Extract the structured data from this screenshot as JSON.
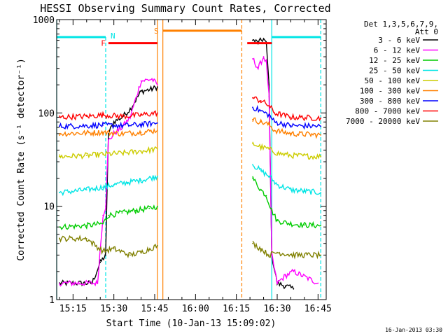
{
  "chart_data": {
    "type": "line",
    "title": "HESSI Observing Summary Count Rates, Corrected",
    "xlabel": "Start Time (10-Jan-13 15:09:02)",
    "ylabel": "Corrected Count Rate (s⁻¹ detector⁻¹)",
    "y_scale": "log",
    "ylim": [
      1,
      1000
    ],
    "xlim": [
      "15:09",
      "16:48"
    ],
    "x_ticks": [
      "15:15",
      "15:30",
      "15:45",
      "16:00",
      "16:15",
      "16:30",
      "16:45"
    ],
    "y_ticks": [
      "1",
      "10",
      "100",
      "1000"
    ],
    "legend": {
      "placement": "right",
      "header": [
        "Det 1,3,5,6,7,9,",
        "Att 0"
      ],
      "entries": [
        {
          "label": "3 - 6 keV",
          "color": "#000000"
        },
        {
          "label": "6 - 12 keV",
          "color": "#ff00ff"
        },
        {
          "label": "12 - 25 keV",
          "color": "#00cc00"
        },
        {
          "label": "25 - 50 keV",
          "color": "#00e5e5"
        },
        {
          "label": "50 - 100 keV",
          "color": "#cccc00"
        },
        {
          "label": "100 - 300 keV",
          "color": "#ff8000"
        },
        {
          "label": "300 - 800 keV",
          "color": "#0000ff"
        },
        {
          "label": "800 - 7000 keV",
          "color": "#ff0000"
        },
        {
          "label": "7000 - 20000 keV",
          "color": "#808000"
        }
      ]
    },
    "series": [
      {
        "name": "3 - 6 keV",
        "color": "#000000",
        "segments": [
          {
            "x": [
              "15:10",
              "15:22",
              "15:25",
              "15:27",
              "15:28",
              "15:30",
              "15:33",
              "15:36",
              "15:40",
              "15:44",
              "15:46"
            ],
            "y": [
              1.5,
              1.5,
              2.5,
              3,
              60,
              80,
              90,
              110,
              170,
              180,
              190
            ]
          },
          {
            "x": [
              "16:21",
              "16:23",
              "16:25",
              "16:26",
              "16:27",
              "16:28",
              "16:30",
              "16:33",
              "16:36"
            ],
            "y": [
              600,
              570,
              620,
              550,
              200,
              3,
              1.5,
              1.4,
              1.3
            ]
          }
        ]
      },
      {
        "name": "6 - 12 keV",
        "color": "#ff00ff",
        "segments": [
          {
            "x": [
              "15:10",
              "15:24",
              "15:26",
              "15:27",
              "15:28",
              "15:30",
              "15:33",
              "15:36",
              "15:40",
              "15:44",
              "15:46"
            ],
            "y": [
              1.5,
              1.5,
              8,
              10,
              50,
              60,
              70,
              90,
              220,
              230,
              200
            ]
          },
          {
            "x": [
              "16:21",
              "16:23",
              "16:25",
              "16:26",
              "16:27",
              "16:28",
              "16:30",
              "16:33",
              "16:36",
              "16:45"
            ],
            "y": [
              380,
              300,
              400,
              350,
              150,
              3,
              1.5,
              1.8,
              2,
              1.5
            ]
          }
        ]
      },
      {
        "name": "12 - 25 keV",
        "color": "#00cc00",
        "segments": [
          {
            "x": [
              "15:10",
              "15:20",
              "15:26",
              "15:28",
              "15:33",
              "15:38",
              "15:43",
              "15:46"
            ],
            "y": [
              6,
              6.2,
              6.5,
              8,
              8.5,
              9,
              9.5,
              10
            ]
          },
          {
            "x": [
              "16:21",
              "16:24",
              "16:26",
              "16:28",
              "16:30",
              "16:35",
              "16:40",
              "16:46"
            ],
            "y": [
              20,
              15,
              13,
              9,
              7,
              6.5,
              6.3,
              6.2
            ]
          }
        ]
      },
      {
        "name": "25 - 50 keV",
        "color": "#00e5e5",
        "segments": [
          {
            "x": [
              "15:10",
              "15:20",
              "15:26",
              "15:30",
              "15:35",
              "15:40",
              "15:46"
            ],
            "y": [
              14,
              15,
              16,
              17,
              18,
              19,
              21
            ]
          },
          {
            "x": [
              "16:21",
              "16:24",
              "16:27",
              "16:30",
              "16:35",
              "16:40",
              "16:46"
            ],
            "y": [
              28,
              24,
              21,
              17,
              15,
              14.5,
              14
            ]
          }
        ]
      },
      {
        "name": "50 - 100 keV",
        "color": "#cccc00",
        "segments": [
          {
            "x": [
              "15:10",
              "15:20",
              "15:26",
              "15:33",
              "15:40",
              "15:46"
            ],
            "y": [
              34,
              35,
              36,
              37,
              39,
              41
            ]
          },
          {
            "x": [
              "16:21",
              "16:24",
              "16:27",
              "16:30",
              "16:35",
              "16:46"
            ],
            "y": [
              47,
              43,
              41,
              37,
              35,
              34
            ]
          }
        ]
      },
      {
        "name": "100 - 300 keV",
        "color": "#ff8000",
        "segments": [
          {
            "x": [
              "15:10",
              "15:20",
              "15:26",
              "15:33",
              "15:40",
              "15:46"
            ],
            "y": [
              60,
              61,
              62,
              60,
              62,
              65
            ]
          },
          {
            "x": [
              "16:21",
              "16:24",
              "16:27",
              "16:29",
              "16:35",
              "16:46"
            ],
            "y": [
              85,
              80,
              75,
              65,
              60,
              58
            ]
          }
        ]
      },
      {
        "name": "300 - 800 keV",
        "color": "#0000ff",
        "segments": [
          {
            "x": [
              "15:10",
              "15:20",
              "15:26",
              "15:33",
              "15:40",
              "15:46"
            ],
            "y": [
              72,
              73,
              74,
              73,
              75,
              78
            ]
          },
          {
            "x": [
              "16:21",
              "16:24",
              "16:27",
              "16:29",
              "16:35",
              "16:46"
            ],
            "y": [
              115,
              105,
              95,
              80,
              73,
              72
            ]
          }
        ]
      },
      {
        "name": "800 - 7000 keV",
        "color": "#ff0000",
        "segments": [
          {
            "x": [
              "15:10",
              "15:20",
              "15:26",
              "15:33",
              "15:40",
              "15:46"
            ],
            "y": [
              90,
              92,
              95,
              92,
              95,
              100
            ]
          },
          {
            "x": [
              "16:21",
              "16:24",
              "16:27",
              "16:29",
              "16:35",
              "16:46"
            ],
            "y": [
              145,
              135,
              120,
              100,
              90,
              88
            ]
          }
        ]
      },
      {
        "name": "7000 - 20000 keV",
        "color": "#808000",
        "segments": [
          {
            "x": [
              "15:10",
              "15:20",
              "15:26",
              "15:30",
              "15:36",
              "15:40",
              "15:46"
            ],
            "y": [
              4.5,
              4.5,
              3.3,
              3.5,
              3.0,
              3.2,
              3.8
            ]
          },
          {
            "x": [
              "16:21",
              "16:24",
              "16:27",
              "16:30",
              "16:36",
              "16:46"
            ],
            "y": [
              4.0,
              3.5,
              3.0,
              3.2,
              3.0,
              3.0
            ]
          }
        ]
      }
    ],
    "flag_bars": [
      {
        "label": "",
        "color": "#00e5e5",
        "y": 650,
        "x": [
          "15:09",
          "15:27"
        ]
      },
      {
        "label": "",
        "color": "#00e5e5",
        "y": 650,
        "x": [
          "16:28",
          "16:46"
        ]
      },
      {
        "label": "N",
        "color": "#00e5e5",
        "y": 650,
        "x": [
          "15:27",
          "15:27"
        ]
      },
      {
        "label": "F",
        "color": "#ff0000",
        "y": 560,
        "x": [
          "15:28",
          "15:46"
        ]
      },
      {
        "label": "",
        "color": "#ff0000",
        "y": 560,
        "x": [
          "16:19",
          "16:28"
        ]
      },
      {
        "label": "S",
        "color": "#ff8000",
        "y": 760,
        "x": [
          "15:48",
          "16:17"
        ]
      }
    ],
    "markers": [
      {
        "x": "15:09",
        "color": "#00e5e5",
        "style": "solid",
        "span": "full"
      },
      {
        "x": "15:27",
        "color": "#00e5e5",
        "style": "dashed",
        "span": "lower"
      },
      {
        "x": "15:46",
        "color": "#ff8000",
        "style": "solid",
        "span": "full"
      },
      {
        "x": "15:48",
        "color": "#ff8000",
        "style": "solid",
        "span": "full"
      },
      {
        "x": "16:17",
        "color": "#ff8000",
        "style": "dashed",
        "span": "full"
      },
      {
        "x": "16:28",
        "color": "#00e5e5",
        "style": "solid",
        "span": "full"
      },
      {
        "x": "16:46",
        "color": "#00e5e5",
        "style": "dashed",
        "span": "full"
      }
    ],
    "footer_timestamp": "16-Jan-2013 03:30"
  }
}
